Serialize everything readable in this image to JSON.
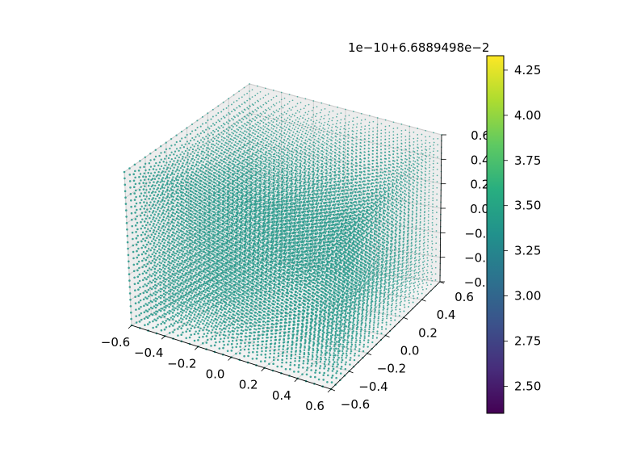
{
  "chart_data": {
    "type": "scatter",
    "projection": "3d",
    "grid": true,
    "grid_points_per_axis": 25,
    "x": {
      "range": [
        -0.6,
        0.6
      ],
      "ticks": [
        "−0.6",
        "−0.4",
        "−0.2",
        "0.0",
        "0.2",
        "0.4",
        "0.6"
      ]
    },
    "y": {
      "range": [
        -0.6,
        0.6
      ],
      "ticks": [
        "−0.6",
        "−0.4",
        "−0.2",
        "0.0",
        "0.2",
        "0.4",
        "0.6"
      ]
    },
    "z": {
      "range": [
        -0.6,
        0.6
      ],
      "ticks": [
        "−0.6",
        "−0.4",
        "−0.2",
        "0.0",
        "0.2",
        "0.4",
        "0.6"
      ]
    },
    "point_color": "#2a9a8c",
    "colorbar": {
      "colormap": "viridis",
      "offset_text": "1e−10+6.6889498e−2",
      "range": [
        2.35,
        4.33
      ],
      "ticks": [
        "2.50",
        "2.75",
        "3.00",
        "3.25",
        "3.50",
        "3.75",
        "4.00",
        "4.25"
      ],
      "tick_values": [
        2.5,
        2.75,
        3.0,
        3.25,
        3.5,
        3.75,
        4.0,
        4.25
      ],
      "point_value": 3.34
    }
  }
}
